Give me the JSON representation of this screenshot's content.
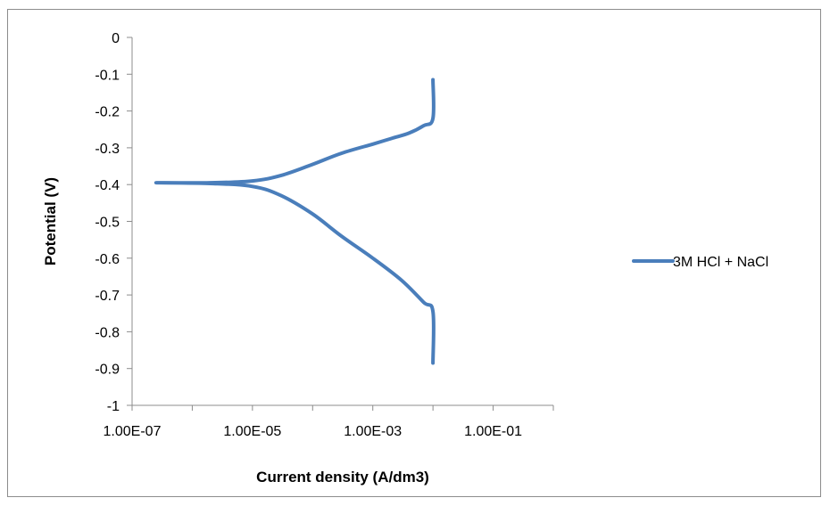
{
  "chart_data": {
    "type": "line",
    "title": "",
    "xlabel": "Current density (A/dm3)",
    "ylabel": "Potential (V)",
    "x_scale": "log",
    "xlim": [
      1e-07,
      1
    ],
    "ylim": [
      -1,
      0
    ],
    "x_ticks": [
      1e-07,
      1e-05,
      0.001,
      0.1
    ],
    "x_tick_labels": [
      "1.00E-07",
      "1.00E-05",
      "1.00E-03",
      "1.00E-01"
    ],
    "y_ticks": [
      0,
      -0.1,
      -0.2,
      -0.3,
      -0.4,
      -0.5,
      -0.6,
      -0.7,
      -0.8,
      -0.9,
      -1
    ],
    "y_tick_labels": [
      "0",
      "-0.1",
      "-0.2",
      "-0.3",
      "-0.4",
      "-0.5",
      "-0.6",
      "-0.7",
      "-0.8",
      "-0.9",
      "-1"
    ],
    "grid": false,
    "legend_position": "right",
    "color": "#4a7ebb",
    "series": [
      {
        "name": "3M HCl + NaCl",
        "color": "#4a7ebb",
        "points": [
          {
            "x": 0.01,
            "y": -0.115
          },
          {
            "x": 0.01,
            "y": -0.22
          },
          {
            "x": 0.007,
            "y": -0.24
          },
          {
            "x": 0.004,
            "y": -0.26
          },
          {
            "x": 0.002,
            "y": -0.275
          },
          {
            "x": 0.001,
            "y": -0.29
          },
          {
            "x": 0.0003,
            "y": -0.315
          },
          {
            "x": 0.0001,
            "y": -0.345
          },
          {
            "x": 3e-05,
            "y": -0.375
          },
          {
            "x": 1e-05,
            "y": -0.39
          },
          {
            "x": 2e-06,
            "y": -0.395
          },
          {
            "x": 2.5e-07,
            "y": -0.395
          },
          {
            "x": 2e-06,
            "y": -0.397
          },
          {
            "x": 1e-05,
            "y": -0.405
          },
          {
            "x": 3e-05,
            "y": -0.43
          },
          {
            "x": 0.0001,
            "y": -0.48
          },
          {
            "x": 0.0003,
            "y": -0.54
          },
          {
            "x": 0.001,
            "y": -0.6
          },
          {
            "x": 0.003,
            "y": -0.66
          },
          {
            "x": 0.007,
            "y": -0.72
          },
          {
            "x": 0.01,
            "y": -0.745
          },
          {
            "x": 0.01,
            "y": -0.885
          }
        ]
      }
    ]
  }
}
